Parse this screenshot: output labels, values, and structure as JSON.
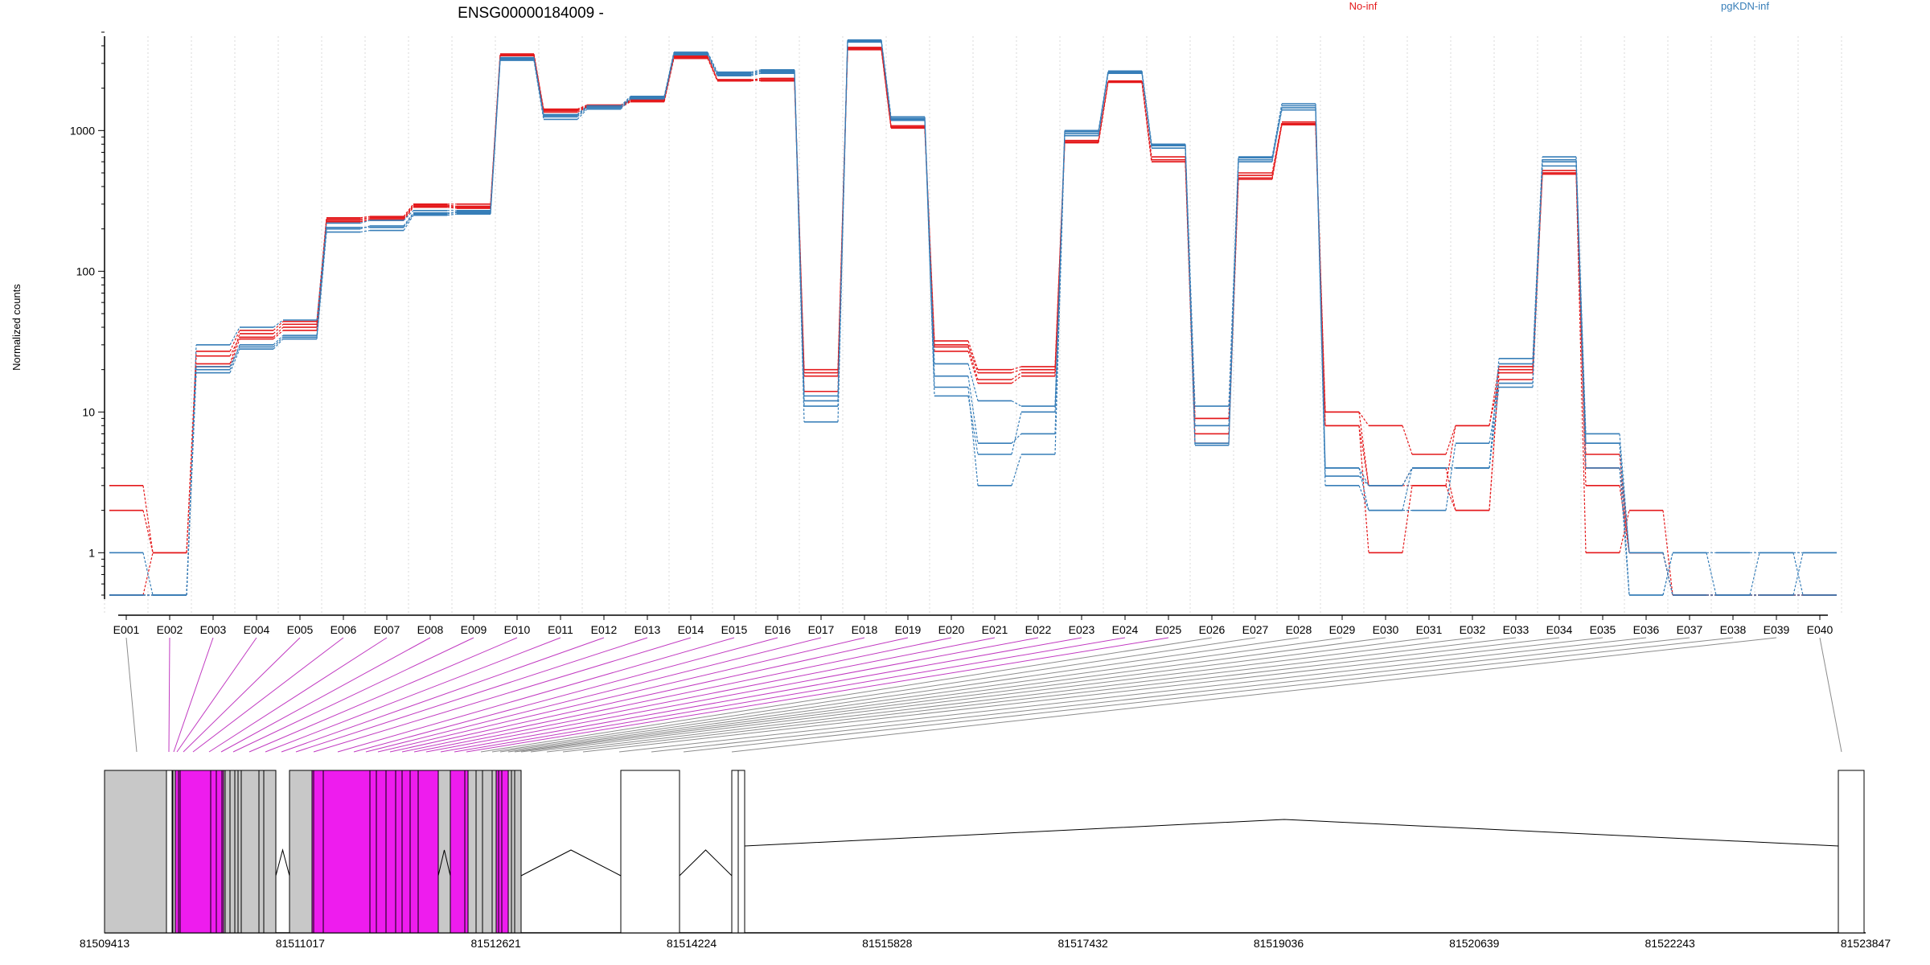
{
  "title": "ENSG00000184009 -",
  "ylabel": "Normalized counts",
  "legend": [
    {
      "name": "No-inf",
      "color": "#E41A1C"
    },
    {
      "name": "pgKDN-inf",
      "color": "#377EB8"
    }
  ],
  "colors": {
    "no_inf": "#E41A1C",
    "pgkdn_inf": "#377EB8",
    "highlight_exon": "#EE1CEE",
    "other_exon": "#C8C8C8",
    "connector_highlight": "#C13AC1",
    "connector_other": "#8C8C8C"
  },
  "chart_data": {
    "type": "line",
    "y_scale": "log",
    "ylim": [
      0.5,
      5000
    ],
    "y_ticks": [
      1,
      10,
      100,
      1000
    ],
    "y_tick_labels": [
      "1",
      "10",
      "100",
      "1000"
    ],
    "grid": "vertical dotted per exon bin",
    "categories": [
      "E001",
      "E002",
      "E003",
      "E004",
      "E005",
      "E006",
      "E007",
      "E008",
      "E009",
      "E010",
      "E011",
      "E012",
      "E013",
      "E014",
      "E015",
      "E016",
      "E017",
      "E018",
      "E019",
      "E020",
      "E021",
      "E022",
      "E023",
      "E024",
      "E025",
      "E026",
      "E027",
      "E028",
      "E029",
      "E030",
      "E031",
      "E032",
      "E033",
      "E034",
      "E035",
      "E036",
      "E037",
      "E038",
      "E039",
      "E040"
    ],
    "highlighted_bins": [
      "E002",
      "E003",
      "E004",
      "E005",
      "E006",
      "E007",
      "E008",
      "E009",
      "E010",
      "E011",
      "E012",
      "E013",
      "E014",
      "E015",
      "E016",
      "E017",
      "E018",
      "E019",
      "E020",
      "E021",
      "E022",
      "E023",
      "E024",
      "E025"
    ],
    "series": [
      {
        "name": "No-inf",
        "group": "No-inf",
        "values": [
          3,
          1,
          27,
          38,
          44,
          240,
          245,
          300,
          300,
          3450,
          1420,
          1520,
          1650,
          3400,
          2300,
          2300,
          20,
          3800,
          1050,
          32,
          20,
          21,
          820,
          2200,
          600,
          9,
          450,
          1100,
          10,
          8,
          5,
          8,
          17,
          500,
          1,
          2,
          0.5,
          0.5,
          0.5,
          0.5
        ]
      },
      {
        "name": "No-inf",
        "group": "No-inf",
        "values": [
          2,
          1,
          22,
          36,
          42,
          235,
          240,
          295,
          290,
          3500,
          1380,
          1480,
          1620,
          3300,
          2280,
          2350,
          19,
          3900,
          1080,
          30,
          19,
          20,
          850,
          2250,
          650,
          9,
          500,
          1150,
          8,
          3,
          3,
          2,
          19,
          520,
          3,
          1,
          0.5,
          0.5,
          0.5,
          0.5
        ]
      },
      {
        "name": "No-inf",
        "group": "No-inf",
        "values": [
          0.5,
          1,
          25,
          34,
          40,
          230,
          235,
          290,
          285,
          3400,
          1400,
          1500,
          1640,
          3350,
          2300,
          2250,
          18,
          3850,
          1060,
          29,
          17,
          19,
          830,
          2230,
          620,
          7,
          480,
          1120,
          10,
          3,
          4,
          2,
          20,
          500,
          4,
          1,
          0.5,
          0.5,
          0.5,
          0.5
        ]
      },
      {
        "name": "No-inf",
        "group": "No-inf",
        "values": [
          0.5,
          0.5,
          21,
          33,
          38,
          225,
          230,
          285,
          280,
          3450,
          1350,
          1460,
          1600,
          3250,
          2250,
          2300,
          14,
          3750,
          1040,
          27,
          16,
          18,
          820,
          2210,
          600,
          6,
          460,
          1100,
          8,
          1,
          3,
          8,
          21,
          490,
          5,
          1,
          0.5,
          0.5,
          0.5,
          0.5
        ]
      },
      {
        "name": "pgKDN-inf",
        "group": "pgKDN-inf",
        "values": [
          1,
          0.5,
          30,
          40,
          45,
          220,
          230,
          270,
          270,
          3300,
          1300,
          1500,
          1750,
          3600,
          2600,
          2700,
          13,
          4400,
          1250,
          22,
          12,
          11,
          1000,
          2650,
          800,
          11,
          650,
          1550,
          4,
          3,
          4,
          4,
          24,
          650,
          7,
          1,
          0.5,
          0.5,
          0.5,
          1
        ]
      },
      {
        "name": "pgKDN-inf",
        "group": "pgKDN-inf",
        "values": [
          0.5,
          0.5,
          20,
          30,
          35,
          200,
          210,
          260,
          260,
          3200,
          1250,
          1450,
          1700,
          3500,
          2500,
          2600,
          12,
          4300,
          1200,
          18,
          6,
          7,
          950,
          2600,
          780,
          8,
          600,
          1450,
          3.5,
          3,
          4,
          4,
          22,
          600,
          6,
          1,
          0.5,
          0.5,
          0.5,
          0.5
        ]
      },
      {
        "name": "pgKDN-inf",
        "group": "pgKDN-inf",
        "values": [
          0.5,
          0.5,
          19,
          28,
          33,
          190,
          195,
          250,
          255,
          3150,
          1200,
          1420,
          1680,
          3450,
          2450,
          2550,
          11,
          4250,
          1180,
          15,
          3,
          5,
          920,
          2550,
          750,
          6,
          620,
          1400,
          3,
          2,
          2,
          6,
          16,
          560,
          4,
          0.5,
          1,
          0.5,
          1,
          0.5
        ]
      },
      {
        "name": "pgKDN-inf",
        "group": "pgKDN-inf",
        "values": [
          0.5,
          0.5,
          21,
          29,
          34,
          205,
          205,
          255,
          265,
          3250,
          1280,
          1470,
          1720,
          3550,
          2550,
          2650,
          8.5,
          4350,
          1220,
          13,
          5,
          10,
          980,
          2620,
          790,
          5.8,
          640,
          1500,
          4,
          2,
          4,
          4,
          15,
          620,
          6,
          0.5,
          1,
          1,
          1,
          1
        ]
      }
    ]
  },
  "gene_model": {
    "coordinate_labels": [
      "81509413",
      "81511017",
      "81512621",
      "81514224",
      "81515828",
      "81517432",
      "81519036",
      "81520639",
      "81522243",
      "81523847"
    ],
    "start": 81509413,
    "end": 81523847
  }
}
